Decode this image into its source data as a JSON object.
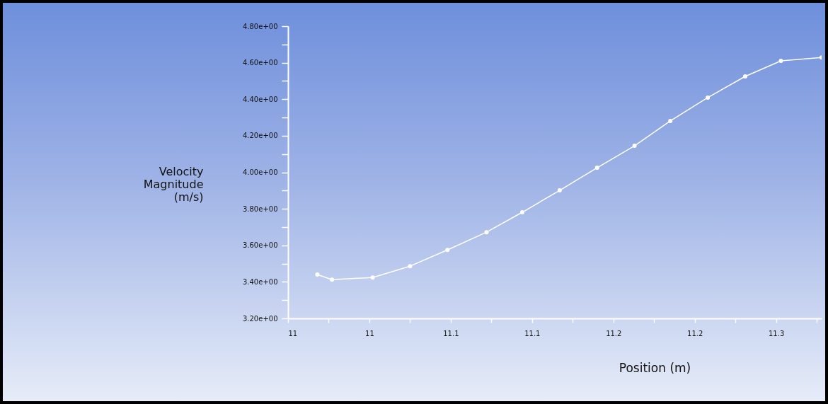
{
  "chart_data": {
    "type": "line",
    "xlabel": "Position (m)",
    "ylabel": "Velocity Magnitude (m/s)",
    "x": [
      11.018,
      11.027,
      11.052,
      11.075,
      11.098,
      11.122,
      11.144,
      11.167,
      11.19,
      11.213,
      11.235,
      11.258,
      11.281,
      11.303,
      11.328
    ],
    "series": [
      {
        "color": "#ffffff",
        "values": [
          3.44,
          3.412,
          3.424,
          3.486,
          3.575,
          3.672,
          3.781,
          3.901,
          4.025,
          4.145,
          4.281,
          4.409,
          4.525,
          4.61,
          4.629
        ]
      }
    ],
    "xlim": [
      11.0,
      11.328
    ],
    "xticks": [
      {
        "value": 11.0,
        "label": "11"
      },
      {
        "value": 11.025,
        "label": null
      },
      {
        "value": 11.05,
        "label": "11"
      },
      {
        "value": 11.075,
        "label": null
      },
      {
        "value": 11.1,
        "label": "11.1"
      },
      {
        "value": 11.125,
        "label": null
      },
      {
        "value": 11.15,
        "label": "11.1"
      },
      {
        "value": 11.175,
        "label": null
      },
      {
        "value": 11.2,
        "label": "11.2"
      },
      {
        "value": 11.225,
        "label": null
      },
      {
        "value": 11.25,
        "label": "11.2"
      },
      {
        "value": 11.275,
        "label": null
      },
      {
        "value": 11.3,
        "label": "11.3"
      },
      {
        "value": 11.325,
        "label": null
      }
    ],
    "ylim": [
      3.2,
      4.8
    ],
    "yticks": [
      {
        "value": 3.2,
        "label": "3.20e+00"
      },
      {
        "value": 3.3,
        "label": null
      },
      {
        "value": 3.4,
        "label": "3.40e+00"
      },
      {
        "value": 3.5,
        "label": null
      },
      {
        "value": 3.6,
        "label": "3.60e+00"
      },
      {
        "value": 3.7,
        "label": null
      },
      {
        "value": 3.8,
        "label": "3.80e+00"
      },
      {
        "value": 3.9,
        "label": null
      },
      {
        "value": 4.0,
        "label": "4.00e+00"
      },
      {
        "value": 4.1,
        "label": null
      },
      {
        "value": 4.2,
        "label": "4.20e+00"
      },
      {
        "value": 4.3,
        "label": null
      },
      {
        "value": 4.4,
        "label": "4.40e+00"
      },
      {
        "value": 4.5,
        "label": null
      },
      {
        "value": 4.6,
        "label": "4.60e+00"
      },
      {
        "value": 4.7,
        "label": null
      },
      {
        "value": 4.8,
        "label": "4.80e+00"
      }
    ],
    "grid": false,
    "legend": false,
    "marker": "circle",
    "line_style": "solid"
  }
}
